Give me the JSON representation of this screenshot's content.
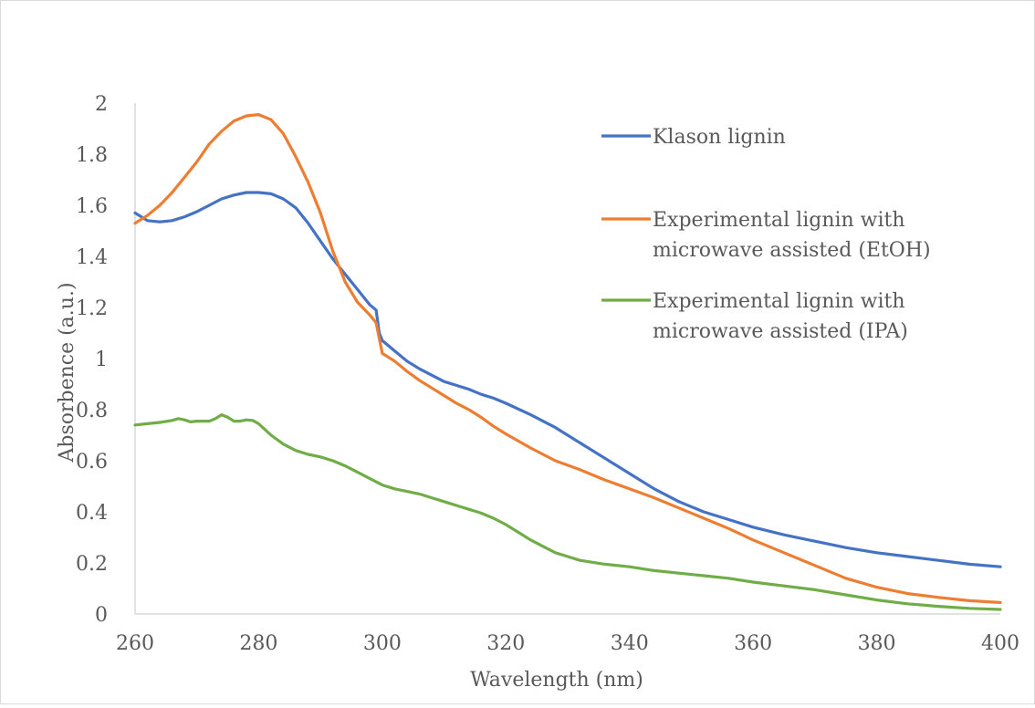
{
  "chart_data": {
    "type": "line",
    "title": "",
    "xlabel": "Wavelength (nm)",
    "ylabel": "Absorbence (a.u.)",
    "xlim": [
      260,
      400
    ],
    "ylim": [
      0,
      2
    ],
    "x_ticks": [
      260,
      280,
      300,
      320,
      340,
      360,
      380,
      400
    ],
    "y_ticks": [
      0,
      0.2,
      0.4,
      0.6,
      0.8,
      1,
      1.2,
      1.4,
      1.6,
      1.8,
      2
    ],
    "grid": false,
    "legend_position": "right",
    "series": [
      {
        "name": "Klason lignin",
        "color": "#4472C4",
        "points": [
          [
            260,
            1.57
          ],
          [
            262,
            1.54
          ],
          [
            264,
            1.535
          ],
          [
            266,
            1.54
          ],
          [
            268,
            1.555
          ],
          [
            270,
            1.575
          ],
          [
            272,
            1.6
          ],
          [
            274,
            1.625
          ],
          [
            276,
            1.64
          ],
          [
            278,
            1.65
          ],
          [
            280,
            1.65
          ],
          [
            282,
            1.645
          ],
          [
            284,
            1.625
          ],
          [
            286,
            1.59
          ],
          [
            288,
            1.53
          ],
          [
            290,
            1.46
          ],
          [
            292,
            1.39
          ],
          [
            294,
            1.33
          ],
          [
            296,
            1.27
          ],
          [
            298,
            1.21
          ],
          [
            299,
            1.19
          ],
          [
            299.5,
            1.1
          ],
          [
            300,
            1.07
          ],
          [
            302,
            1.03
          ],
          [
            304,
            0.99
          ],
          [
            306,
            0.96
          ],
          [
            308,
            0.935
          ],
          [
            310,
            0.91
          ],
          [
            312,
            0.895
          ],
          [
            314,
            0.88
          ],
          [
            316,
            0.86
          ],
          [
            318,
            0.845
          ],
          [
            320,
            0.825
          ],
          [
            324,
            0.78
          ],
          [
            328,
            0.73
          ],
          [
            332,
            0.67
          ],
          [
            336,
            0.61
          ],
          [
            340,
            0.55
          ],
          [
            344,
            0.49
          ],
          [
            348,
            0.44
          ],
          [
            352,
            0.4
          ],
          [
            356,
            0.37
          ],
          [
            360,
            0.34
          ],
          [
            365,
            0.31
          ],
          [
            370,
            0.285
          ],
          [
            375,
            0.26
          ],
          [
            380,
            0.24
          ],
          [
            385,
            0.225
          ],
          [
            390,
            0.21
          ],
          [
            395,
            0.195
          ],
          [
            400,
            0.185
          ]
        ]
      },
      {
        "name": "Experimental lignin with microwave assisted (EtOH)",
        "color": "#ED7D31",
        "points": [
          [
            260,
            1.53
          ],
          [
            262,
            1.56
          ],
          [
            264,
            1.6
          ],
          [
            266,
            1.65
          ],
          [
            268,
            1.71
          ],
          [
            270,
            1.77
          ],
          [
            272,
            1.84
          ],
          [
            274,
            1.89
          ],
          [
            276,
            1.93
          ],
          [
            278,
            1.95
          ],
          [
            280,
            1.955
          ],
          [
            282,
            1.935
          ],
          [
            284,
            1.88
          ],
          [
            286,
            1.79
          ],
          [
            288,
            1.69
          ],
          [
            290,
            1.57
          ],
          [
            292,
            1.42
          ],
          [
            294,
            1.3
          ],
          [
            296,
            1.22
          ],
          [
            298,
            1.17
          ],
          [
            299,
            1.14
          ],
          [
            300,
            1.02
          ],
          [
            302,
            0.99
          ],
          [
            304,
            0.95
          ],
          [
            306,
            0.915
          ],
          [
            308,
            0.885
          ],
          [
            310,
            0.855
          ],
          [
            312,
            0.825
          ],
          [
            314,
            0.8
          ],
          [
            316,
            0.77
          ],
          [
            318,
            0.735
          ],
          [
            320,
            0.705
          ],
          [
            324,
            0.65
          ],
          [
            328,
            0.6
          ],
          [
            332,
            0.565
          ],
          [
            336,
            0.525
          ],
          [
            340,
            0.49
          ],
          [
            344,
            0.455
          ],
          [
            348,
            0.415
          ],
          [
            352,
            0.375
          ],
          [
            356,
            0.335
          ],
          [
            360,
            0.29
          ],
          [
            365,
            0.24
          ],
          [
            370,
            0.19
          ],
          [
            375,
            0.14
          ],
          [
            380,
            0.105
          ],
          [
            385,
            0.08
          ],
          [
            390,
            0.065
          ],
          [
            395,
            0.052
          ],
          [
            400,
            0.045
          ]
        ]
      },
      {
        "name": "Experimental lignin with microwave assisted (IPA)",
        "color": "#70AD47",
        "points": [
          [
            260,
            0.74
          ],
          [
            262,
            0.745
          ],
          [
            264,
            0.75
          ],
          [
            266,
            0.758
          ],
          [
            267,
            0.765
          ],
          [
            268,
            0.76
          ],
          [
            269,
            0.752
          ],
          [
            270,
            0.755
          ],
          [
            272,
            0.755
          ],
          [
            273,
            0.765
          ],
          [
            274,
            0.78
          ],
          [
            275,
            0.77
          ],
          [
            276,
            0.755
          ],
          [
            277,
            0.755
          ],
          [
            278,
            0.76
          ],
          [
            279,
            0.758
          ],
          [
            280,
            0.745
          ],
          [
            282,
            0.7
          ],
          [
            284,
            0.665
          ],
          [
            286,
            0.64
          ],
          [
            288,
            0.625
          ],
          [
            290,
            0.615
          ],
          [
            292,
            0.6
          ],
          [
            294,
            0.58
          ],
          [
            296,
            0.555
          ],
          [
            298,
            0.53
          ],
          [
            300,
            0.505
          ],
          [
            302,
            0.49
          ],
          [
            304,
            0.48
          ],
          [
            306,
            0.47
          ],
          [
            308,
            0.455
          ],
          [
            310,
            0.44
          ],
          [
            312,
            0.425
          ],
          [
            314,
            0.41
          ],
          [
            316,
            0.395
          ],
          [
            318,
            0.375
          ],
          [
            320,
            0.35
          ],
          [
            322,
            0.32
          ],
          [
            324,
            0.29
          ],
          [
            326,
            0.265
          ],
          [
            328,
            0.24
          ],
          [
            330,
            0.225
          ],
          [
            332,
            0.21
          ],
          [
            336,
            0.195
          ],
          [
            340,
            0.185
          ],
          [
            344,
            0.17
          ],
          [
            348,
            0.16
          ],
          [
            352,
            0.15
          ],
          [
            356,
            0.14
          ],
          [
            360,
            0.125
          ],
          [
            365,
            0.11
          ],
          [
            370,
            0.095
          ],
          [
            375,
            0.075
          ],
          [
            380,
            0.055
          ],
          [
            385,
            0.04
          ],
          [
            390,
            0.03
          ],
          [
            395,
            0.022
          ],
          [
            400,
            0.018
          ]
        ]
      }
    ]
  }
}
